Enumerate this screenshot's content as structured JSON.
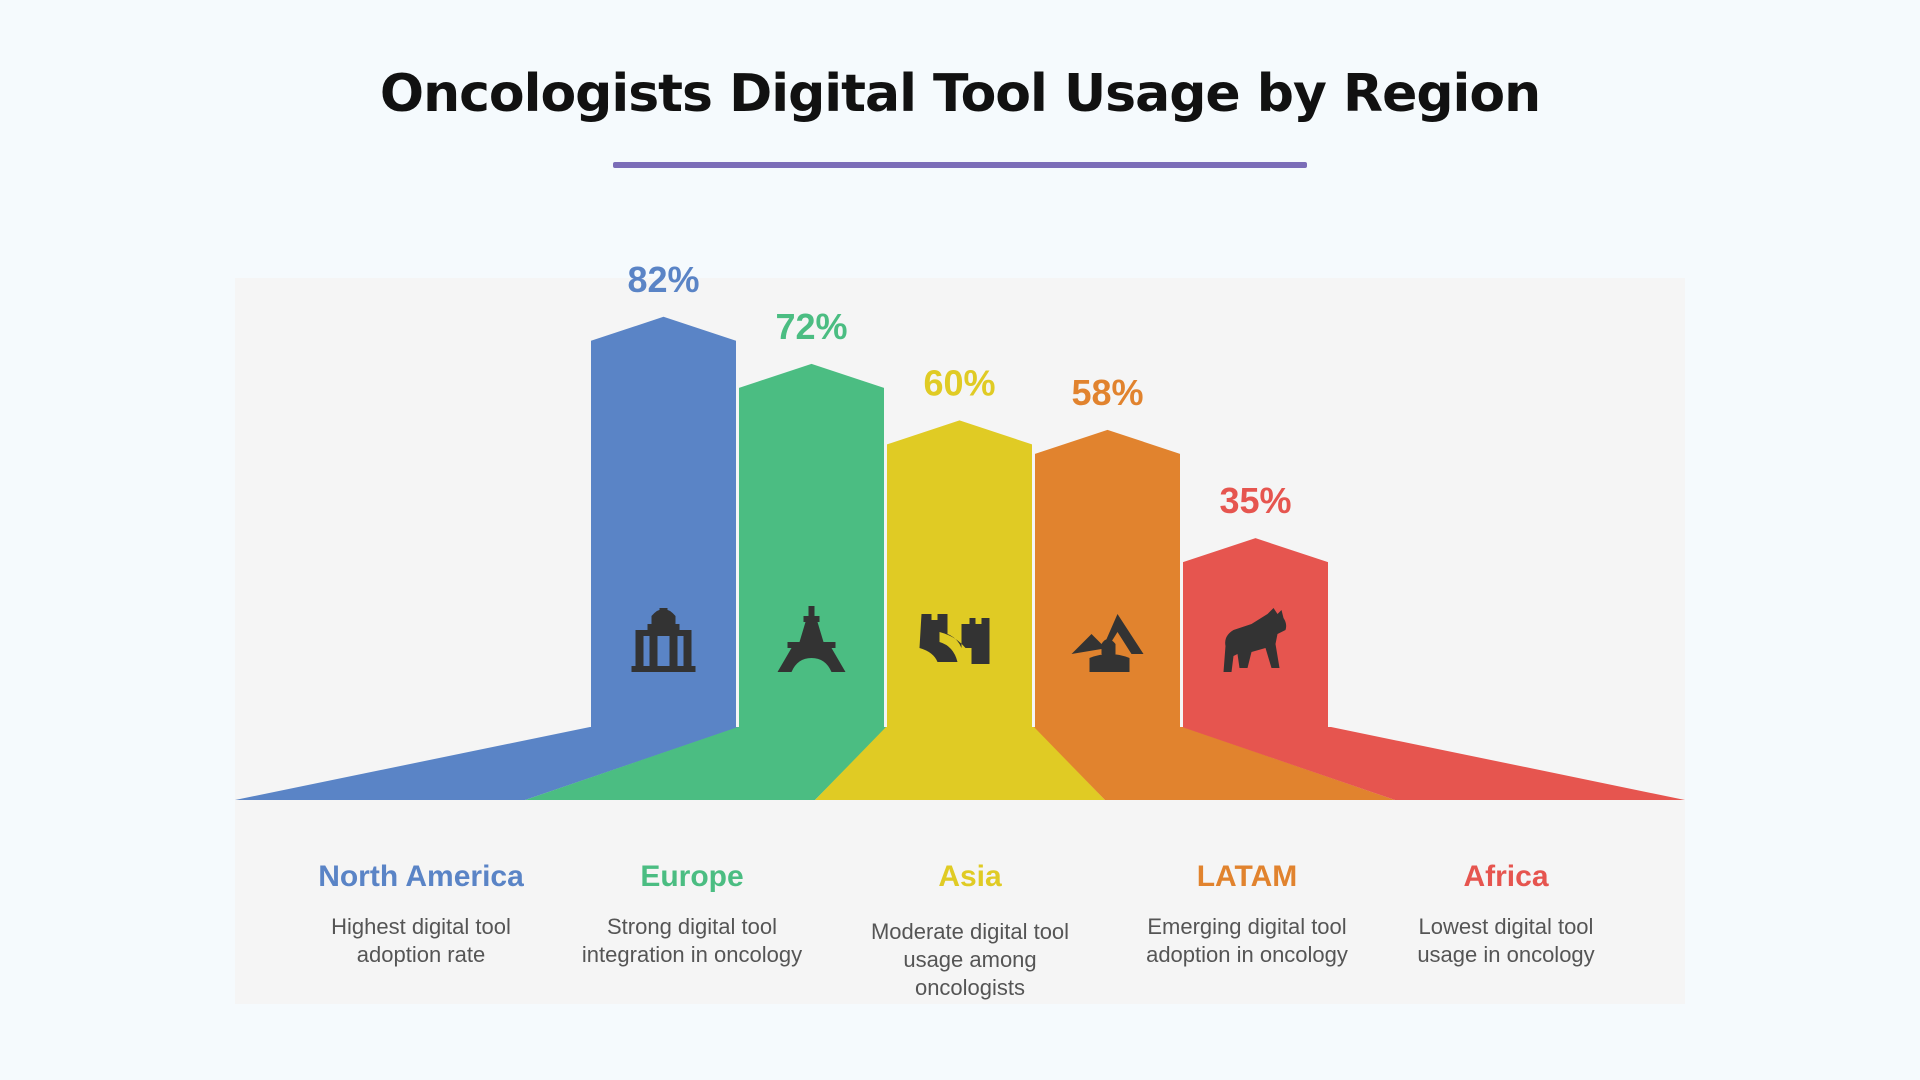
{
  "title": "Oncologists Digital Tool Usage by Region",
  "chart_data": {
    "type": "bar",
    "title": "Oncologists Digital Tool Usage by Region",
    "categories": [
      "North America",
      "Europe",
      "Asia",
      "LATAM",
      "Africa"
    ],
    "values": [
      82,
      72,
      60,
      58,
      35
    ],
    "value_suffix": "%",
    "value_labels": [
      "82%",
      "72%",
      "60%",
      "58%",
      "35%"
    ],
    "descriptions": [
      [
        "Highest digital tool",
        "adoption rate"
      ],
      [
        "Strong digital tool",
        "integration in oncology"
      ],
      [
        "Moderate digital tool",
        "usage among",
        "oncologists"
      ],
      [
        "Emerging digital tool",
        "adoption in oncology"
      ],
      [
        "Lowest digital tool",
        "usage in oncology"
      ]
    ],
    "colors": [
      "#5a84c6",
      "#4bbd82",
      "#e0cb24",
      "#e1832e",
      "#e6554f"
    ],
    "icons": [
      "capitol-building-icon",
      "eiffel-tower-icon",
      "great-wall-icon",
      "pyramids-sphinx-icon",
      "hyena-icon"
    ],
    "ylim": [
      0,
      100
    ],
    "grid": false,
    "legend": "none"
  }
}
